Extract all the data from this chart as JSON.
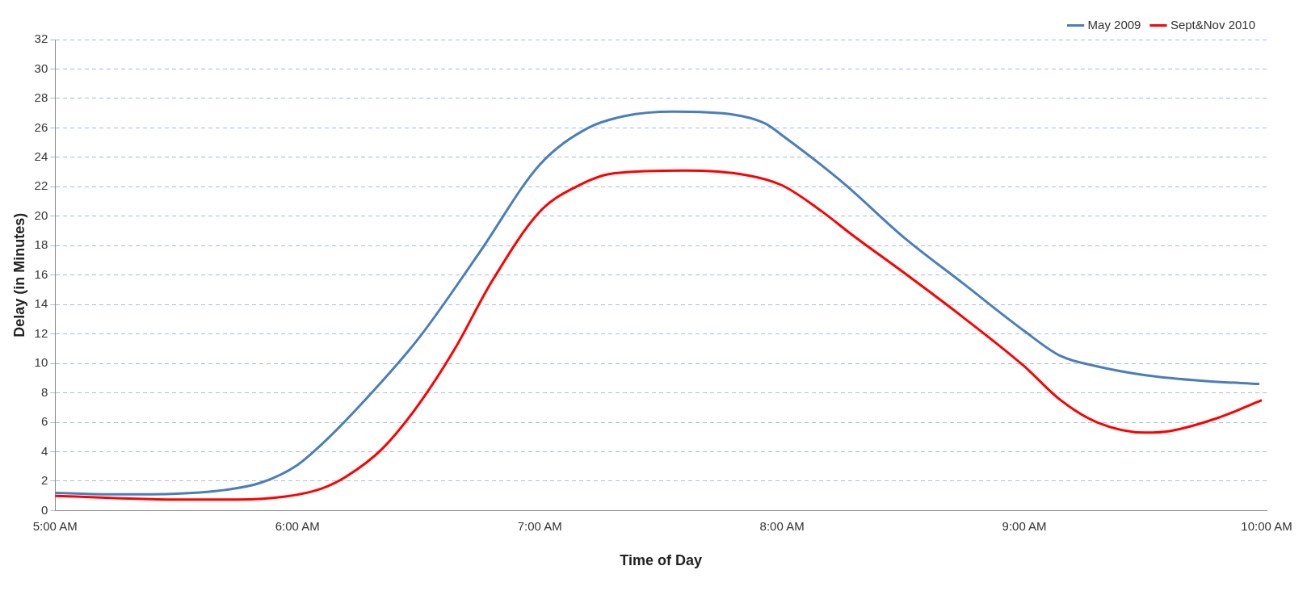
{
  "chart_data": {
    "type": "line",
    "xlabel": "Time of Day",
    "ylabel": "Delay (in Minutes)",
    "xlim": [
      5,
      10
    ],
    "xticks": [
      {
        "value": 5,
        "label": "5:00 AM"
      },
      {
        "value": 6,
        "label": "6:00 AM"
      },
      {
        "value": 7,
        "label": "7:00 AM"
      },
      {
        "value": 8,
        "label": "8:00 AM"
      },
      {
        "value": 9,
        "label": "9:00 AM"
      },
      {
        "value": 10,
        "label": "10:00 AM"
      }
    ],
    "ylim": [
      0,
      32
    ],
    "yticks": [
      0,
      2,
      4,
      6,
      8,
      10,
      12,
      14,
      16,
      18,
      20,
      22,
      24,
      26,
      28,
      30,
      32
    ],
    "grid": "y",
    "legend": "top right",
    "marker": "none",
    "line_style": "solid",
    "series": [
      {
        "name": "May 2009",
        "color": "#4a7ebb",
        "x": [
          5.0,
          5.25,
          5.5,
          5.7,
          5.85,
          6.0,
          6.1,
          6.25,
          6.5,
          6.75,
          7.0,
          7.2,
          7.35,
          7.55,
          7.8,
          7.93,
          8.0,
          8.25,
          8.5,
          8.75,
          9.0,
          9.15,
          9.3,
          9.5,
          9.75,
          9.97
        ],
        "values": [
          1.2,
          1.1,
          1.15,
          1.4,
          1.9,
          3.1,
          4.5,
          7.0,
          11.7,
          17.5,
          23.5,
          26.0,
          26.8,
          27.1,
          26.9,
          26.3,
          25.5,
          22.3,
          18.6,
          15.4,
          12.2,
          10.5,
          9.8,
          9.2,
          8.8,
          8.6
        ]
      },
      {
        "name": "Sept&Nov 2010",
        "color": "#ff0000",
        "x": [
          5.0,
          5.25,
          5.5,
          5.75,
          5.95,
          6.1,
          6.2,
          6.35,
          6.5,
          6.65,
          6.8,
          7.0,
          7.15,
          7.3,
          7.6,
          7.85,
          8.0,
          8.15,
          8.3,
          8.5,
          8.75,
          9.0,
          9.15,
          9.3,
          9.5,
          9.6,
          9.8,
          9.98
        ],
        "values": [
          1.0,
          0.85,
          0.75,
          0.75,
          0.95,
          1.5,
          2.3,
          4.2,
          7.2,
          11.0,
          15.5,
          20.3,
          22.0,
          22.9,
          23.1,
          22.8,
          22.1,
          20.5,
          18.6,
          16.2,
          13.1,
          9.8,
          7.5,
          6.0,
          5.3,
          5.4,
          6.3,
          7.5
        ]
      }
    ]
  }
}
